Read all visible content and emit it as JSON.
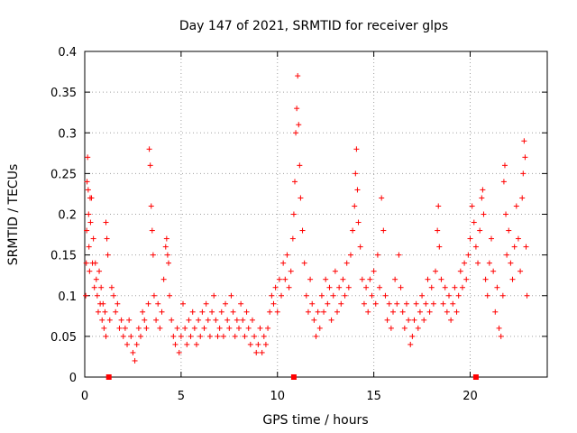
{
  "chart_data": {
    "type": "scatter",
    "title": "Day 147 of 2021, SRMTID for receiver glps",
    "xlabel": "GPS time / hours",
    "ylabel": "SRMTID / TECUs",
    "xlim": [
      0,
      24
    ],
    "ylim": [
      0,
      0.4
    ],
    "x_ticks": [
      0,
      5,
      10,
      15,
      20
    ],
    "x_tick_labels": [
      "0",
      "5",
      "10",
      "15",
      "20"
    ],
    "y_ticks": [
      0,
      0.05,
      0.1,
      0.15,
      0.2,
      0.25,
      0.3,
      0.35,
      0.4
    ],
    "y_tick_labels": [
      "0",
      "0.05",
      "0.1",
      "0.15",
      "0.2",
      "0.25",
      "0.3",
      "0.35",
      "0.4"
    ],
    "grid": true,
    "marker": "plus",
    "color": "#ff0000",
    "data_gap_markers_x": [
      1.25,
      10.85,
      20.3
    ],
    "series": [
      {
        "name": "SRMTID",
        "points": [
          [
            0.05,
            0.1
          ],
          [
            0.08,
            0.14
          ],
          [
            0.1,
            0.18
          ],
          [
            0.12,
            0.24
          ],
          [
            0.15,
            0.27
          ],
          [
            0.18,
            0.23
          ],
          [
            0.2,
            0.2
          ],
          [
            0.22,
            0.16
          ],
          [
            0.25,
            0.13
          ],
          [
            0.28,
            0.22
          ],
          [
            0.3,
            0.19
          ],
          [
            0.35,
            0.22
          ],
          [
            0.4,
            0.14
          ],
          [
            0.45,
            0.17
          ],
          [
            0.5,
            0.11
          ],
          [
            0.55,
            0.14
          ],
          [
            0.6,
            0.12
          ],
          [
            0.65,
            0.1
          ],
          [
            0.7,
            0.08
          ],
          [
            0.75,
            0.13
          ],
          [
            0.8,
            0.09
          ],
          [
            0.85,
            0.11
          ],
          [
            0.9,
            0.07
          ],
          [
            0.95,
            0.09
          ],
          [
            1.0,
            0.06
          ],
          [
            1.05,
            0.08
          ],
          [
            1.1,
            0.05
          ],
          [
            1.1,
            0.19
          ],
          [
            1.15,
            0.17
          ],
          [
            1.2,
            0.15
          ],
          [
            1.3,
            0.07
          ],
          [
            1.4,
            0.11
          ],
          [
            1.5,
            0.1
          ],
          [
            1.6,
            0.08
          ],
          [
            1.7,
            0.09
          ],
          [
            1.8,
            0.06
          ],
          [
            1.9,
            0.07
          ],
          [
            2.0,
            0.05
          ],
          [
            2.1,
            0.06
          ],
          [
            2.2,
            0.04
          ],
          [
            2.3,
            0.07
          ],
          [
            2.4,
            0.05
          ],
          [
            2.5,
            0.03
          ],
          [
            2.6,
            0.02
          ],
          [
            2.7,
            0.04
          ],
          [
            2.8,
            0.06
          ],
          [
            2.9,
            0.05
          ],
          [
            3.0,
            0.08
          ],
          [
            3.1,
            0.07
          ],
          [
            3.2,
            0.06
          ],
          [
            3.3,
            0.09
          ],
          [
            3.35,
            0.28
          ],
          [
            3.4,
            0.26
          ],
          [
            3.45,
            0.21
          ],
          [
            3.5,
            0.18
          ],
          [
            3.55,
            0.15
          ],
          [
            3.6,
            0.1
          ],
          [
            3.7,
            0.07
          ],
          [
            3.8,
            0.09
          ],
          [
            3.9,
            0.06
          ],
          [
            4.0,
            0.08
          ],
          [
            4.1,
            0.12
          ],
          [
            4.2,
            0.16
          ],
          [
            4.25,
            0.17
          ],
          [
            4.3,
            0.15
          ],
          [
            4.35,
            0.14
          ],
          [
            4.4,
            0.1
          ],
          [
            4.5,
            0.07
          ],
          [
            4.6,
            0.05
          ],
          [
            4.7,
            0.04
          ],
          [
            4.8,
            0.06
          ],
          [
            4.9,
            0.03
          ],
          [
            5.0,
            0.05
          ],
          [
            5.1,
            0.09
          ],
          [
            5.2,
            0.06
          ],
          [
            5.3,
            0.04
          ],
          [
            5.4,
            0.07
          ],
          [
            5.5,
            0.05
          ],
          [
            5.6,
            0.08
          ],
          [
            5.7,
            0.06
          ],
          [
            5.8,
            0.04
          ],
          [
            5.9,
            0.07
          ],
          [
            6.0,
            0.05
          ],
          [
            6.1,
            0.08
          ],
          [
            6.2,
            0.06
          ],
          [
            6.3,
            0.09
          ],
          [
            6.4,
            0.07
          ],
          [
            6.5,
            0.05
          ],
          [
            6.6,
            0.08
          ],
          [
            6.7,
            0.1
          ],
          [
            6.8,
            0.07
          ],
          [
            6.9,
            0.05
          ],
          [
            7.0,
            0.06
          ],
          [
            7.1,
            0.08
          ],
          [
            7.2,
            0.05
          ],
          [
            7.3,
            0.09
          ],
          [
            7.4,
            0.07
          ],
          [
            7.5,
            0.06
          ],
          [
            7.6,
            0.1
          ],
          [
            7.7,
            0.08
          ],
          [
            7.8,
            0.05
          ],
          [
            7.9,
            0.07
          ],
          [
            8.0,
            0.06
          ],
          [
            8.1,
            0.09
          ],
          [
            8.2,
            0.07
          ],
          [
            8.3,
            0.05
          ],
          [
            8.4,
            0.08
          ],
          [
            8.5,
            0.06
          ],
          [
            8.6,
            0.04
          ],
          [
            8.7,
            0.07
          ],
          [
            8.8,
            0.05
          ],
          [
            8.9,
            0.03
          ],
          [
            9.0,
            0.04
          ],
          [
            9.1,
            0.06
          ],
          [
            9.2,
            0.03
          ],
          [
            9.3,
            0.05
          ],
          [
            9.4,
            0.04
          ],
          [
            9.5,
            0.06
          ],
          [
            9.6,
            0.08
          ],
          [
            9.7,
            0.1
          ],
          [
            9.8,
            0.09
          ],
          [
            9.9,
            0.11
          ],
          [
            10.0,
            0.08
          ],
          [
            10.1,
            0.12
          ],
          [
            10.2,
            0.1
          ],
          [
            10.3,
            0.14
          ],
          [
            10.4,
            0.12
          ],
          [
            10.5,
            0.15
          ],
          [
            10.6,
            0.11
          ],
          [
            10.7,
            0.13
          ],
          [
            10.8,
            0.17
          ],
          [
            10.85,
            0.2
          ],
          [
            10.9,
            0.24
          ],
          [
            10.95,
            0.3
          ],
          [
            11.0,
            0.33
          ],
          [
            11.05,
            0.37
          ],
          [
            11.1,
            0.31
          ],
          [
            11.15,
            0.26
          ],
          [
            11.2,
            0.22
          ],
          [
            11.3,
            0.18
          ],
          [
            11.4,
            0.14
          ],
          [
            11.5,
            0.1
          ],
          [
            11.6,
            0.08
          ],
          [
            11.7,
            0.12
          ],
          [
            11.8,
            0.09
          ],
          [
            11.9,
            0.07
          ],
          [
            12.0,
            0.05
          ],
          [
            12.1,
            0.08
          ],
          [
            12.2,
            0.06
          ],
          [
            12.3,
            0.1
          ],
          [
            12.4,
            0.08
          ],
          [
            12.5,
            0.12
          ],
          [
            12.6,
            0.09
          ],
          [
            12.7,
            0.11
          ],
          [
            12.8,
            0.07
          ],
          [
            12.9,
            0.1
          ],
          [
            13.0,
            0.13
          ],
          [
            13.1,
            0.08
          ],
          [
            13.2,
            0.11
          ],
          [
            13.3,
            0.09
          ],
          [
            13.4,
            0.12
          ],
          [
            13.5,
            0.1
          ],
          [
            13.6,
            0.14
          ],
          [
            13.7,
            0.11
          ],
          [
            13.8,
            0.15
          ],
          [
            13.9,
            0.18
          ],
          [
            14.0,
            0.21
          ],
          [
            14.05,
            0.25
          ],
          [
            14.1,
            0.28
          ],
          [
            14.15,
            0.23
          ],
          [
            14.2,
            0.19
          ],
          [
            14.3,
            0.16
          ],
          [
            14.4,
            0.12
          ],
          [
            14.5,
            0.09
          ],
          [
            14.6,
            0.11
          ],
          [
            14.7,
            0.08
          ],
          [
            14.8,
            0.12
          ],
          [
            14.9,
            0.1
          ],
          [
            15.0,
            0.13
          ],
          [
            15.1,
            0.09
          ],
          [
            15.2,
            0.15
          ],
          [
            15.3,
            0.11
          ],
          [
            15.4,
            0.22
          ],
          [
            15.5,
            0.18
          ],
          [
            15.6,
            0.1
          ],
          [
            15.7,
            0.07
          ],
          [
            15.8,
            0.09
          ],
          [
            15.9,
            0.06
          ],
          [
            16.0,
            0.08
          ],
          [
            16.1,
            0.12
          ],
          [
            16.2,
            0.09
          ],
          [
            16.3,
            0.15
          ],
          [
            16.4,
            0.11
          ],
          [
            16.5,
            0.08
          ],
          [
            16.6,
            0.06
          ],
          [
            16.7,
            0.09
          ],
          [
            16.8,
            0.07
          ],
          [
            16.9,
            0.04
          ],
          [
            17.0,
            0.05
          ],
          [
            17.1,
            0.07
          ],
          [
            17.2,
            0.09
          ],
          [
            17.3,
            0.06
          ],
          [
            17.4,
            0.08
          ],
          [
            17.5,
            0.1
          ],
          [
            17.6,
            0.07
          ],
          [
            17.7,
            0.09
          ],
          [
            17.8,
            0.12
          ],
          [
            17.9,
            0.08
          ],
          [
            18.0,
            0.11
          ],
          [
            18.1,
            0.09
          ],
          [
            18.2,
            0.13
          ],
          [
            18.3,
            0.18
          ],
          [
            18.35,
            0.21
          ],
          [
            18.4,
            0.16
          ],
          [
            18.5,
            0.12
          ],
          [
            18.6,
            0.09
          ],
          [
            18.7,
            0.11
          ],
          [
            18.8,
            0.08
          ],
          [
            18.9,
            0.1
          ],
          [
            19.0,
            0.07
          ],
          [
            19.1,
            0.09
          ],
          [
            19.2,
            0.11
          ],
          [
            19.3,
            0.08
          ],
          [
            19.4,
            0.1
          ],
          [
            19.5,
            0.13
          ],
          [
            19.6,
            0.11
          ],
          [
            19.7,
            0.14
          ],
          [
            19.8,
            0.12
          ],
          [
            19.9,
            0.15
          ],
          [
            20.0,
            0.17
          ],
          [
            20.1,
            0.21
          ],
          [
            20.2,
            0.19
          ],
          [
            20.3,
            0.16
          ],
          [
            20.4,
            0.14
          ],
          [
            20.5,
            0.18
          ],
          [
            20.6,
            0.22
          ],
          [
            20.65,
            0.23
          ],
          [
            20.7,
            0.2
          ],
          [
            20.8,
            0.12
          ],
          [
            20.9,
            0.1
          ],
          [
            21.0,
            0.14
          ],
          [
            21.1,
            0.17
          ],
          [
            21.2,
            0.13
          ],
          [
            21.3,
            0.08
          ],
          [
            21.4,
            0.11
          ],
          [
            21.5,
            0.06
          ],
          [
            21.6,
            0.05
          ],
          [
            21.7,
            0.1
          ],
          [
            21.75,
            0.24
          ],
          [
            21.8,
            0.26
          ],
          [
            21.85,
            0.2
          ],
          [
            21.9,
            0.15
          ],
          [
            22.0,
            0.18
          ],
          [
            22.1,
            0.14
          ],
          [
            22.2,
            0.12
          ],
          [
            22.3,
            0.16
          ],
          [
            22.4,
            0.21
          ],
          [
            22.5,
            0.17
          ],
          [
            22.6,
            0.13
          ],
          [
            22.7,
            0.22
          ],
          [
            22.75,
            0.25
          ],
          [
            22.8,
            0.29
          ],
          [
            22.85,
            0.27
          ],
          [
            22.9,
            0.16
          ],
          [
            22.95,
            0.1
          ]
        ]
      }
    ]
  }
}
